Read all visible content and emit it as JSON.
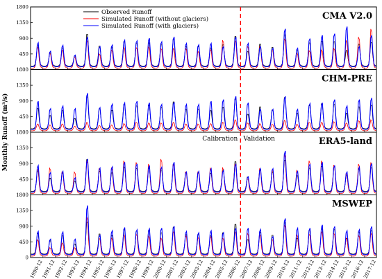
{
  "chart_data": {
    "type": "line",
    "ylabel": "Monthly Runoff (m³/s)",
    "x_categories": [
      "1990-12",
      "1991-12",
      "1992-12",
      "1993-12",
      "1994-12",
      "1995-12",
      "1996-12",
      "1997-12",
      "1998-12",
      "1999-12",
      "2000-12",
      "2001-12",
      "2002-12",
      "2003-12",
      "2004-12",
      "2005-12",
      "2006-12",
      "2007-12",
      "2008-12",
      "2009-12",
      "2010-12",
      "2011-12",
      "2012-12",
      "2013-12",
      "2014-12",
      "2015-12",
      "2016-12",
      "2017-12"
    ],
    "y_ticks": [
      "0",
      "450",
      "900",
      "1350",
      "1800"
    ],
    "ylim": [
      0,
      1800
    ],
    "legend": {
      "position": "top-left",
      "entries": [
        {
          "label": "Observed Runoff",
          "color": "#000000"
        },
        {
          "label": "Simulated Runoff (without glaciers)",
          "color": "#ff0000"
        },
        {
          "label": "Simulated Runoff (with glaciers)",
          "color": "#0000ff"
        }
      ]
    },
    "calibration_label": "Calibration",
    "validation_label": "Validation",
    "split_year_index": 17,
    "observed_peaks": [
      750,
      520,
      680,
      420,
      1120,
      740,
      690,
      880,
      830,
      840,
      780,
      960,
      720,
      720,
      680,
      780,
      1050,
      560,
      800,
      700,
      1100,
      600,
      840,
      900,
      880,
      600,
      800,
      850
    ],
    "panels": [
      {
        "title": "CMA V2.0",
        "with_glaciers_peaks": [
          820,
          560,
          740,
          440,
          1000,
          700,
          750,
          900,
          880,
          960,
          850,
          1000,
          800,
          760,
          800,
          700,
          1000,
          800,
          700,
          650,
          1250,
          650,
          950,
          1050,
          1100,
          1320,
          700,
          1050
        ],
        "without_glaciers_peaks": [
          700,
          500,
          600,
          380,
          900,
          480,
          600,
          680,
          680,
          700,
          650,
          650,
          650,
          560,
          620,
          900,
          900,
          720,
          700,
          600,
          950,
          500,
          580,
          600,
          650,
          900,
          1000,
          1250
        ]
      },
      {
        "title": "CHM-PRE",
        "with_glaciers_peaks": [
          950,
          720,
          800,
          720,
          1200,
          750,
          860,
          900,
          950,
          900,
          850,
          920,
          850,
          850,
          950,
          1000,
          1100,
          900,
          700,
          700,
          1100,
          700,
          880,
          900,
          1000,
          800,
          1000,
          1050
        ],
        "without_glaciers_peaks": [
          250,
          220,
          250,
          180,
          300,
          200,
          220,
          260,
          300,
          280,
          280,
          300,
          250,
          250,
          260,
          300,
          380,
          280,
          260,
          240,
          360,
          240,
          300,
          300,
          320,
          280,
          350,
          380
        ]
      },
      {
        "title": "ERA5-land",
        "with_glaciers_peaks": [
          900,
          680,
          720,
          520,
          1100,
          820,
          860,
          1000,
          950,
          900,
          850,
          1000,
          700,
          720,
          800,
          750,
          950,
          550,
          800,
          800,
          1350,
          720,
          950,
          1000,
          900,
          700,
          850,
          960
        ],
        "without_glaciers_peaks": [
          800,
          820,
          700,
          700,
          1050,
          800,
          820,
          1050,
          1000,
          950,
          1100,
          950,
          700,
          700,
          820,
          830,
          950,
          500,
          800,
          760,
          1250,
          750,
          1050,
          1050,
          920,
          650,
          950,
          1000
        ]
      },
      {
        "title": "MSWEP",
        "with_glaciers_peaks": [
          800,
          560,
          780,
          560,
          1600,
          680,
          820,
          920,
          850,
          880,
          900,
          960,
          800,
          760,
          820,
          760,
          900,
          900,
          860,
          640,
          1200,
          900,
          900,
          1000,
          950,
          820,
          850,
          950
        ],
        "without_glaciers_peaks": [
          550,
          300,
          450,
          300,
          1250,
          600,
          600,
          700,
          720,
          660,
          600,
          800,
          680,
          620,
          650,
          600,
          800,
          750,
          700,
          560,
          1000,
          700,
          720,
          800,
          750,
          600,
          680,
          750
        ]
      }
    ]
  }
}
